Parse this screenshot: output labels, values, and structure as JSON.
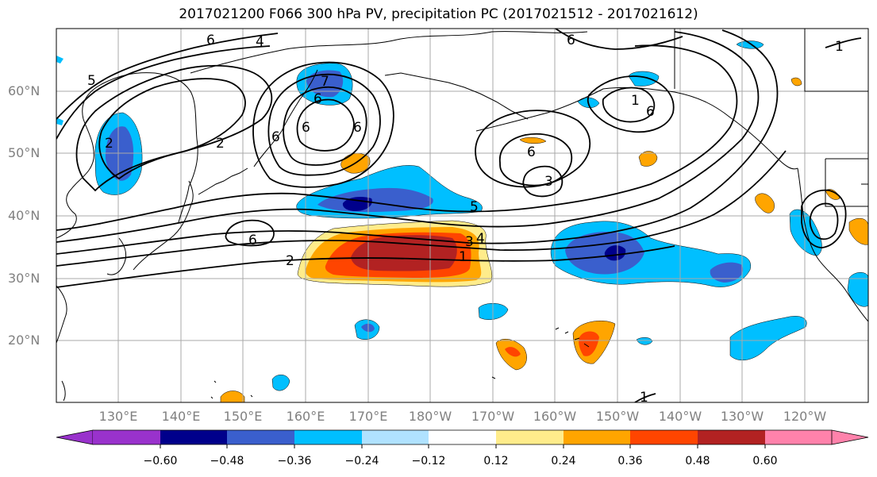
{
  "title": "2017021200 F066 300 hPa PV, precipitation PC (2017021512 - 2017021612)",
  "lat_labels": [
    "60°N",
    "50°N",
    "40°N",
    "30°N",
    "20°N"
  ],
  "lon_labels": [
    "130°E",
    "140°E",
    "150°E",
    "160°E",
    "170°E",
    "180°W",
    "170°W",
    "160°W",
    "150°W",
    "140°W",
    "130°W",
    "120°W"
  ],
  "contour_labels": [
    "6",
    "4",
    "5",
    "2",
    "2",
    "7",
    "6",
    "6",
    "6",
    "6",
    "1",
    "6",
    "6",
    "3",
    "6",
    "5",
    "6",
    "2",
    "3",
    "4",
    "1",
    "1",
    "1"
  ],
  "colorbar": {
    "tick_labels": [
      "−0.60",
      "−0.48",
      "−0.36",
      "−0.24",
      "−0.12",
      "0.12",
      "0.24",
      "0.36",
      "0.48",
      "0.60"
    ],
    "colors": [
      "#9932CC",
      "#00008B",
      "#3A5FCD",
      "#00BFFF",
      "#B0E2FF",
      "#FFFFFF",
      "#FFEC8B",
      "#FFA500",
      "#FF4500",
      "#B22222",
      "#FF82AB"
    ]
  },
  "colors": {
    "contour": "#000000",
    "coast": "#000000",
    "grid": "#a9a9a9",
    "axis_label": "#808080"
  }
}
